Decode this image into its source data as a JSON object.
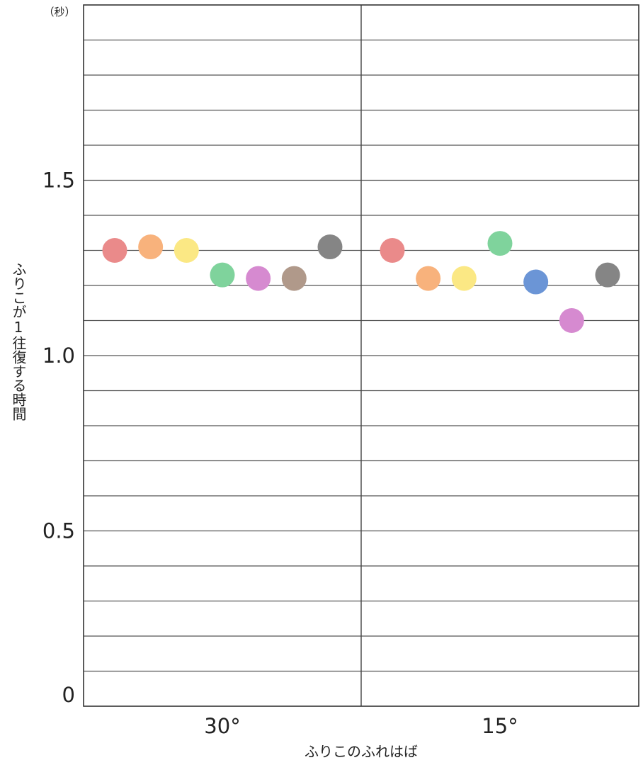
{
  "chart_data": {
    "type": "scatter",
    "xlabel": "ふりこのふれはば",
    "ylabel": "ふりこが1往復する時間",
    "y_unit": "（秒）",
    "ylim": [
      0,
      2.0
    ],
    "y_ticks": [
      {
        "value": 0,
        "label": "0"
      },
      {
        "value": 0.5,
        "label": "0.5"
      },
      {
        "value": 1.0,
        "label": "1.0"
      },
      {
        "value": 1.5,
        "label": "1.5"
      }
    ],
    "y_grid_step": 0.1,
    "grid": true,
    "categories": [
      "30°",
      "15°"
    ],
    "groups": [
      {
        "category": "30°",
        "points": [
          {
            "color": "#ea8a8a",
            "value": 1.3
          },
          {
            "color": "#f8b27c",
            "value": 1.31
          },
          {
            "color": "#fbe884",
            "value": 1.3
          },
          {
            "color": "#7fd39c",
            "value": 1.23
          },
          {
            "color": "#d68ad0",
            "value": 1.22
          },
          {
            "color": "#b0998a",
            "value": 1.22
          },
          {
            "color": "#858585",
            "value": 1.31
          }
        ]
      },
      {
        "category": "15°",
        "points": [
          {
            "color": "#ea8a8a",
            "value": 1.3
          },
          {
            "color": "#f8b27c",
            "value": 1.22
          },
          {
            "color": "#fbe884",
            "value": 1.22
          },
          {
            "color": "#7fd39c",
            "value": 1.32
          },
          {
            "color": "#6b95d6",
            "value": 1.21
          },
          {
            "color": "#d68ad0",
            "value": 1.1
          },
          {
            "color": "#858585",
            "value": 1.23
          }
        ]
      }
    ]
  }
}
